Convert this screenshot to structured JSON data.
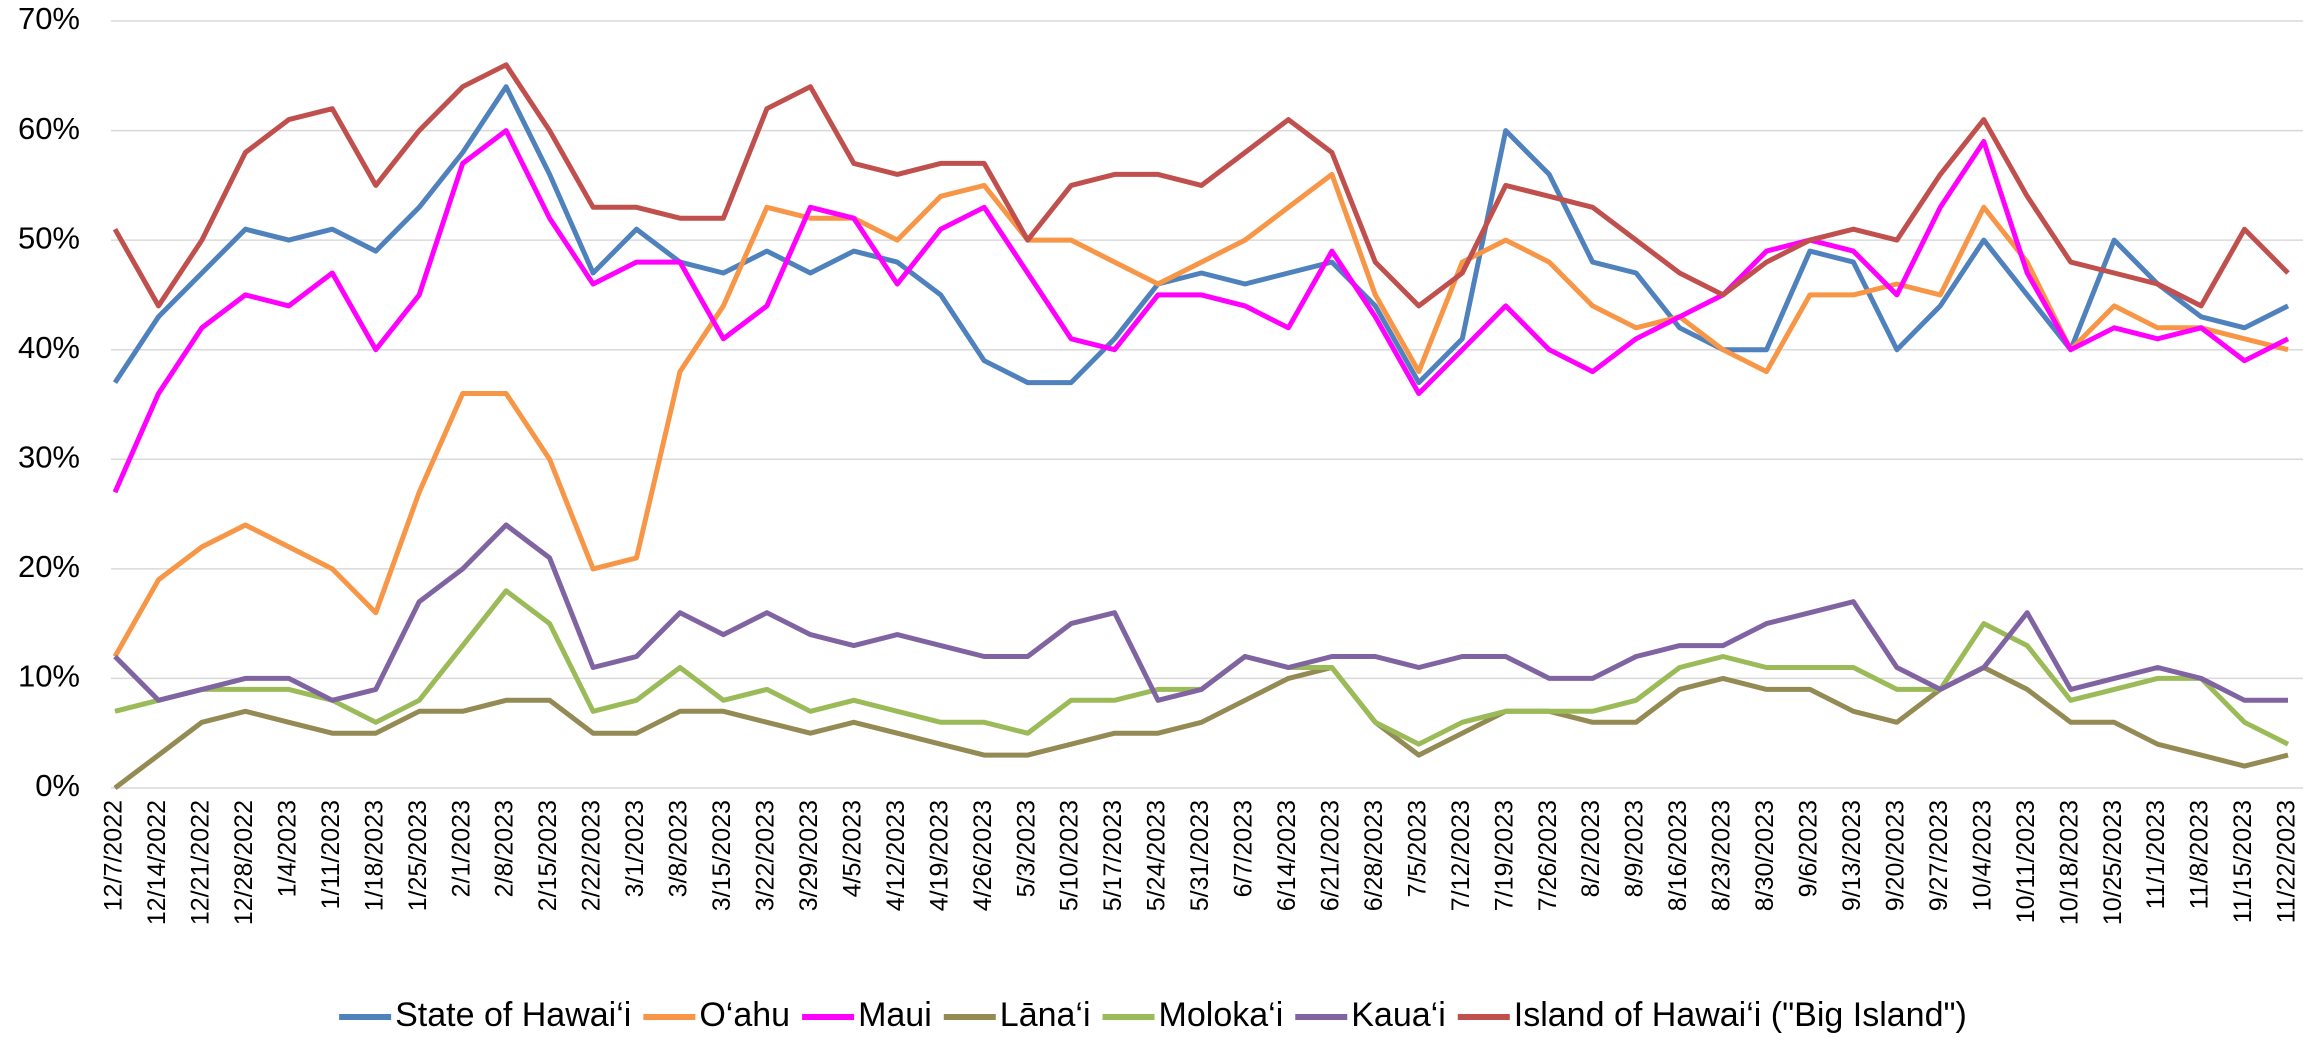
{
  "chart_data": {
    "type": "line",
    "categories": [
      "12/7/2022",
      "12/14/2022",
      "12/21/2022",
      "12/28/2022",
      "1/4/2023",
      "1/11/2023",
      "1/18/2023",
      "1/25/2023",
      "2/1/2023",
      "2/8/2023",
      "2/15/2023",
      "2/22/2023",
      "3/1/2023",
      "3/8/2023",
      "3/15/2023",
      "3/22/2023",
      "3/29/2023",
      "4/5/2023",
      "4/12/2023",
      "4/19/2023",
      "4/26/2023",
      "5/3/2023",
      "5/10/2023",
      "5/17/2023",
      "5/24/2023",
      "5/31/2023",
      "6/7/2023",
      "6/14/2023",
      "6/21/2023",
      "6/28/2023",
      "7/5/2023",
      "7/12/2023",
      "7/19/2023",
      "7/26/2023",
      "8/2/2023",
      "8/9/2023",
      "8/16/2023",
      "8/23/2023",
      "8/30/2023",
      "9/6/2023",
      "9/13/2023",
      "9/20/2023",
      "9/27/2023",
      "10/4/2023",
      "10/11/2023",
      "10/18/2023",
      "10/25/2023",
      "11/1/2023",
      "11/8/2023",
      "11/15/2023",
      "11/22/2023"
    ],
    "series": [
      {
        "name": "State of Hawai‘i",
        "color": "#4f81bd",
        "values": [
          37,
          43,
          47,
          51,
          50,
          51,
          49,
          53,
          58,
          64,
          56,
          47,
          51,
          48,
          47,
          49,
          47,
          49,
          48,
          45,
          39,
          37,
          37,
          41,
          46,
          47,
          46,
          47,
          48,
          44,
          37,
          41,
          60,
          56,
          48,
          47,
          42,
          40,
          40,
          49,
          48,
          40,
          44,
          50,
          45,
          40,
          50,
          46,
          43,
          42,
          44
        ]
      },
      {
        "name": "O‘ahu",
        "color": "#f79646",
        "values": [
          12,
          19,
          22,
          24,
          22,
          20,
          16,
          27,
          36,
          36,
          30,
          20,
          21,
          38,
          44,
          53,
          52,
          52,
          50,
          54,
          55,
          50,
          50,
          48,
          46,
          48,
          50,
          53,
          56,
          45,
          38,
          48,
          50,
          48,
          44,
          42,
          43,
          40,
          38,
          45,
          45,
          46,
          45,
          53,
          48,
          40,
          44,
          42,
          42,
          41,
          40
        ]
      },
      {
        "name": "Maui",
        "color": "#ff00ff",
        "values": [
          27,
          36,
          42,
          45,
          44,
          47,
          40,
          45,
          57,
          60,
          52,
          46,
          48,
          48,
          41,
          44,
          53,
          52,
          46,
          51,
          53,
          47,
          41,
          40,
          45,
          45,
          44,
          42,
          49,
          43,
          36,
          40,
          44,
          40,
          38,
          41,
          43,
          45,
          49,
          50,
          49,
          45,
          53,
          59,
          47,
          40,
          42,
          41,
          42,
          39,
          41
        ]
      },
      {
        "name": "Lāna‘i",
        "color": "#948a54",
        "values": [
          0,
          3,
          6,
          7,
          6,
          5,
          5,
          7,
          7,
          8,
          8,
          5,
          5,
          7,
          7,
          6,
          5,
          6,
          5,
          4,
          3,
          3,
          4,
          5,
          5,
          6,
          8,
          10,
          11,
          6,
          3,
          5,
          7,
          7,
          6,
          6,
          9,
          10,
          9,
          9,
          7,
          6,
          9,
          11,
          9,
          6,
          6,
          4,
          3,
          2,
          3
        ]
      },
      {
        "name": "Moloka‘i",
        "color": "#9bbb59",
        "values": [
          7,
          8,
          9,
          9,
          9,
          8,
          6,
          8,
          13,
          18,
          15,
          7,
          8,
          11,
          8,
          9,
          7,
          8,
          7,
          6,
          6,
          5,
          8,
          8,
          9,
          9,
          12,
          11,
          11,
          6,
          4,
          6,
          7,
          7,
          7,
          8,
          11,
          12,
          11,
          11,
          11,
          9,
          9,
          15,
          13,
          8,
          9,
          10,
          10,
          6,
          4
        ]
      },
      {
        "name": "Kaua‘i",
        "color": "#8064a2",
        "values": [
          12,
          8,
          9,
          10,
          10,
          8,
          9,
          17,
          20,
          24,
          21,
          11,
          12,
          16,
          14,
          16,
          14,
          13,
          14,
          13,
          12,
          12,
          15,
          16,
          8,
          9,
          12,
          11,
          12,
          12,
          11,
          12,
          12,
          10,
          10,
          12,
          13,
          13,
          15,
          16,
          17,
          11,
          9,
          11,
          16,
          9,
          10,
          11,
          10,
          8,
          8
        ]
      },
      {
        "name": "Island of Hawai‘i (\"Big Island\")",
        "color": "#c0504d",
        "values": [
          51,
          44,
          50,
          58,
          61,
          62,
          55,
          60,
          64,
          66,
          60,
          53,
          53,
          52,
          52,
          62,
          64,
          57,
          56,
          57,
          57,
          50,
          55,
          56,
          56,
          55,
          58,
          61,
          58,
          48,
          44,
          47,
          55,
          54,
          53,
          50,
          47,
          45,
          48,
          50,
          51,
          50,
          56,
          61,
          54,
          48,
          47,
          46,
          44,
          51,
          47
        ]
      }
    ],
    "ylim": [
      0,
      70
    ],
    "yticks": [
      {
        "value": 0,
        "label": "0%"
      },
      {
        "value": 10,
        "label": "10%"
      },
      {
        "value": 20,
        "label": "20%"
      },
      {
        "value": 30,
        "label": "30%"
      },
      {
        "value": 40,
        "label": "40%"
      },
      {
        "value": 50,
        "label": "50%"
      },
      {
        "value": 60,
        "label": "60%"
      },
      {
        "value": 70,
        "label": "70%"
      }
    ],
    "grid": true,
    "legend": "bottom"
  }
}
